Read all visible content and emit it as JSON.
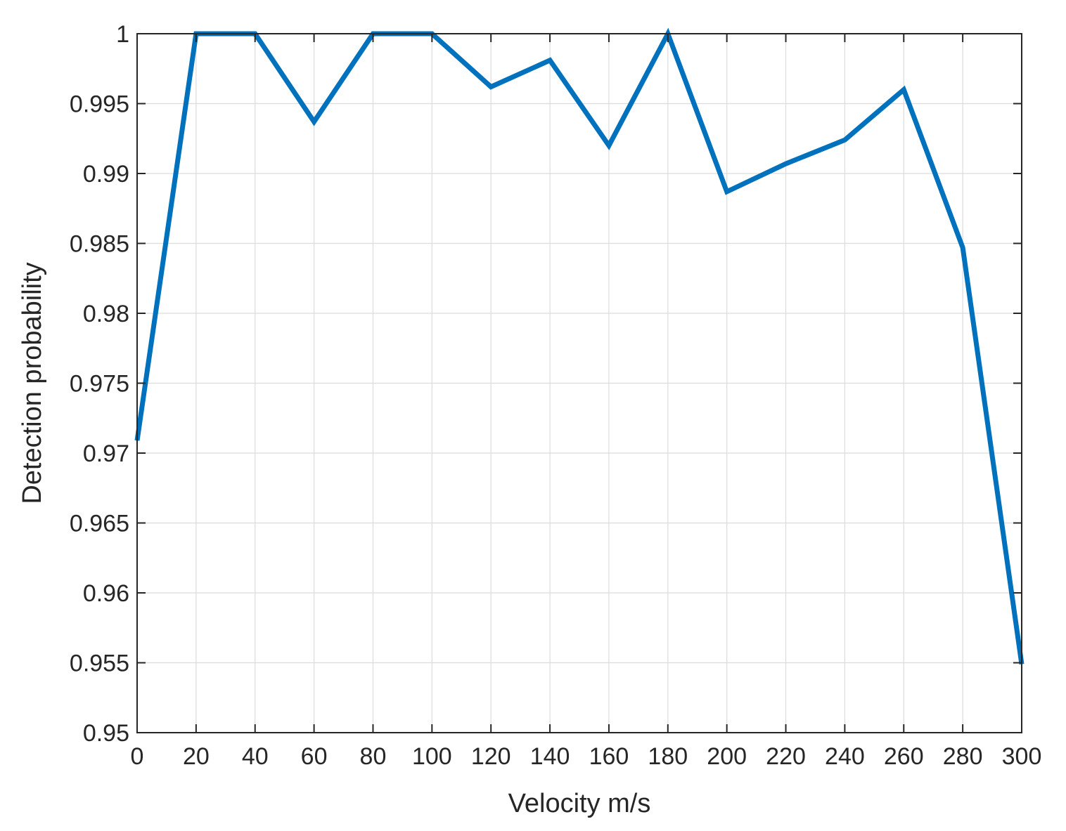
{
  "chart_data": {
    "type": "line",
    "title": "",
    "xlabel": "Velocity m/s",
    "ylabel": "Detection probability",
    "xlim": [
      0,
      300
    ],
    "ylim": [
      0.95,
      1
    ],
    "xticks": [
      0,
      20,
      40,
      60,
      80,
      100,
      120,
      140,
      160,
      180,
      200,
      220,
      240,
      260,
      280,
      300
    ],
    "xtick_labels": [
      "0",
      "20",
      "40",
      "60",
      "80",
      "100",
      "120",
      "140",
      "160",
      "180",
      "200",
      "220",
      "240",
      "260",
      "280",
      "300"
    ],
    "yticks": [
      0.95,
      0.955,
      0.96,
      0.965,
      0.97,
      0.975,
      0.98,
      0.985,
      0.99,
      0.995,
      1
    ],
    "ytick_labels": [
      "0.95",
      "0.955",
      "0.96",
      "0.965",
      "0.97",
      "0.975",
      "0.98",
      "0.985",
      "0.99",
      "0.995",
      "1"
    ],
    "grid": true,
    "box": true,
    "legend": "none",
    "series": [
      {
        "color": "#0072BD",
        "x": [
          0,
          20,
          40,
          60,
          80,
          100,
          120,
          140,
          160,
          180,
          200,
          220,
          240,
          260,
          280,
          300
        ],
        "y": [
          0.9709,
          1.0,
          1.0,
          0.9937,
          1.0,
          1.0,
          0.9962,
          0.9981,
          0.992,
          1.0,
          0.9887,
          0.9907,
          0.9924,
          0.996,
          0.9847,
          0.9549
        ]
      }
    ]
  }
}
